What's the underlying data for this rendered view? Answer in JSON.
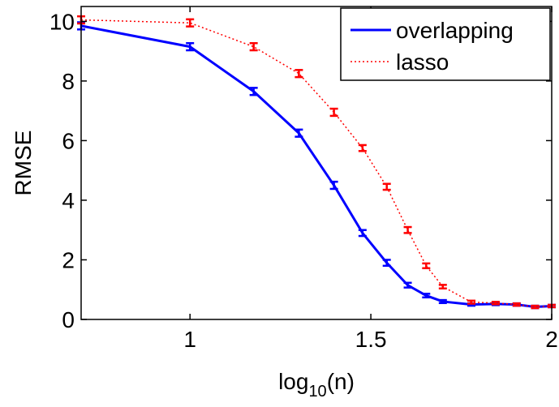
{
  "chart_data": {
    "type": "line",
    "title": "",
    "xlabel": {
      "base": "log",
      "sub": "10",
      "rest": "(n)"
    },
    "ylabel": "RMSE",
    "xlim": [
      0.699,
      2.0
    ],
    "ylim": [
      0,
      10.5
    ],
    "xticks": [
      1,
      1.5,
      2
    ],
    "xtick_labels": [
      "1",
      "1.5",
      "2"
    ],
    "yticks": [
      0,
      2,
      4,
      6,
      8,
      10
    ],
    "ytick_labels": [
      "0",
      "2",
      "4",
      "6",
      "8",
      "10"
    ],
    "grid": false,
    "legend_position": "top-right",
    "series": [
      {
        "name": "overlapping",
        "color": "#0000ff",
        "style": "solid",
        "x": [
          0.699,
          1.0,
          1.176,
          1.301,
          1.398,
          1.477,
          1.544,
          1.602,
          1.653,
          1.699,
          1.778,
          1.845,
          1.903,
          1.954,
          2.0
        ],
        "y": [
          9.85,
          9.15,
          7.65,
          6.25,
          4.5,
          2.9,
          1.9,
          1.15,
          0.8,
          0.6,
          0.5,
          0.52,
          0.5,
          0.42,
          0.45
        ],
        "err": [
          0.12,
          0.12,
          0.12,
          0.12,
          0.12,
          0.1,
          0.1,
          0.08,
          0.06,
          0.05,
          0.04,
          0.04,
          0.04,
          0.04,
          0.04
        ]
      },
      {
        "name": "lasso",
        "color": "#ff0000",
        "style": "dotted",
        "x": [
          0.699,
          1.0,
          1.176,
          1.301,
          1.398,
          1.477,
          1.544,
          1.602,
          1.653,
          1.699,
          1.778,
          1.845,
          1.903,
          1.954,
          2.0
        ],
        "y": [
          10.05,
          9.95,
          9.15,
          8.25,
          6.95,
          5.75,
          4.45,
          3.0,
          1.8,
          1.1,
          0.58,
          0.55,
          0.5,
          0.42,
          0.45
        ],
        "err": [
          0.12,
          0.12,
          0.12,
          0.12,
          0.12,
          0.1,
          0.1,
          0.1,
          0.08,
          0.06,
          0.05,
          0.04,
          0.04,
          0.04,
          0.04
        ]
      }
    ]
  }
}
